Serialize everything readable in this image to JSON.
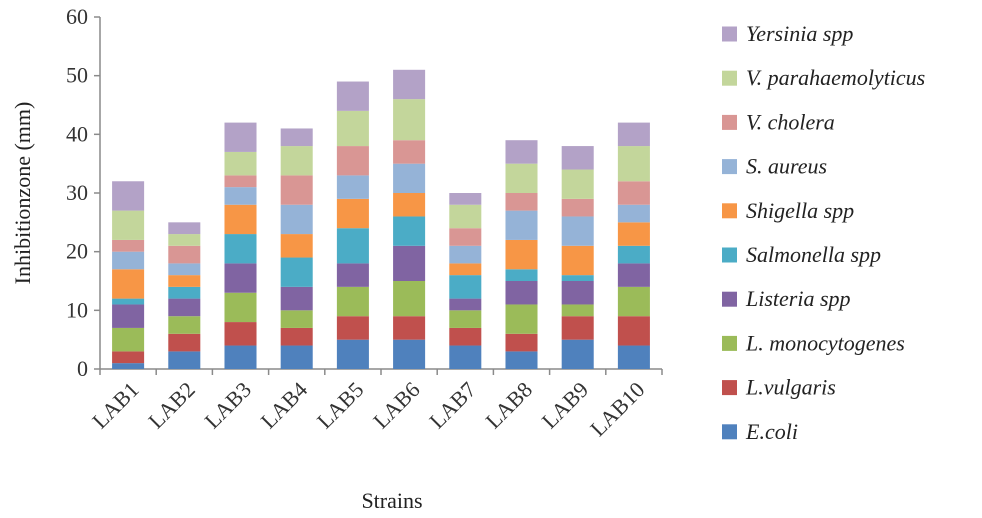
{
  "chart_data": {
    "type": "bar",
    "stacked": true,
    "title": "",
    "xlabel": "Strains",
    "ylabel": "Inhibitionzone (mm)",
    "ylim": [
      0,
      60
    ],
    "yticks": [
      0,
      10,
      20,
      30,
      40,
      50,
      60
    ],
    "grid": false,
    "legend_position": "right",
    "categories": [
      "LAB1",
      "LAB2",
      "LAB3",
      "LAB4",
      "LAB5",
      "LAB6",
      "LAB7",
      "LAB8",
      "LAB9",
      "LAB10"
    ],
    "series": [
      {
        "name": "E.coli",
        "color": "#4f81bd",
        "values": [
          1,
          3,
          4,
          4,
          5,
          5,
          4,
          3,
          5,
          4
        ]
      },
      {
        "name": "L.vulgaris",
        "color": "#c0504d",
        "values": [
          2,
          3,
          4,
          3,
          4,
          4,
          3,
          3,
          4,
          5
        ]
      },
      {
        "name": "L. monocytogenes",
        "color": "#9bbb59",
        "values": [
          4,
          3,
          5,
          3,
          5,
          6,
          3,
          5,
          2,
          5
        ]
      },
      {
        "name": "Listeria spp",
        "color": "#8064a2",
        "values": [
          4,
          3,
          5,
          4,
          4,
          6,
          2,
          4,
          4,
          4
        ]
      },
      {
        "name": "Salmonella spp",
        "color": "#4bacc6",
        "values": [
          1,
          2,
          5,
          5,
          6,
          5,
          4,
          2,
          1,
          3
        ]
      },
      {
        "name": "Shigella spp",
        "color": "#f79646",
        "values": [
          5,
          2,
          5,
          4,
          5,
          4,
          2,
          5,
          5,
          4
        ]
      },
      {
        "name": "S. aureus",
        "color": "#95b3d7",
        "values": [
          3,
          2,
          3,
          5,
          4,
          5,
          3,
          5,
          5,
          3
        ]
      },
      {
        "name": "V. cholera",
        "color": "#d99694",
        "values": [
          2,
          3,
          2,
          5,
          5,
          4,
          3,
          3,
          3,
          4
        ]
      },
      {
        "name": "V. parahaemolyticus",
        "color": "#c3d69b",
        "values": [
          5,
          2,
          4,
          5,
          6,
          7,
          4,
          5,
          5,
          6
        ]
      },
      {
        "name": "Yersinia spp",
        "color": "#b3a2c7",
        "values": [
          5,
          2,
          5,
          3,
          5,
          5,
          2,
          4,
          4,
          4
        ]
      }
    ]
  }
}
